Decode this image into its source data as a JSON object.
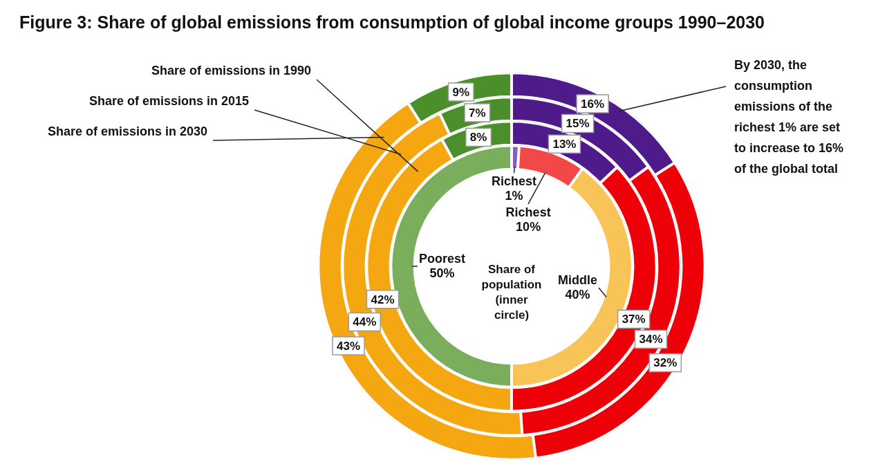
{
  "chart_data": {
    "type": "donut",
    "title": "Figure 3: Share of global emissions from consumption of global income groups 1990–2030",
    "categories": [
      "Richest 1%",
      "Richest 10%",
      "Middle 40%",
      "Poorest 50%"
    ],
    "series": [
      {
        "name": "Share of population (inner circle)",
        "values": [
          1,
          9,
          40,
          50
        ],
        "colors": [
          "#8a5cc2",
          "#f24848",
          "#f8c458",
          "#7aae5c"
        ]
      },
      {
        "name": "Share of emissions in 1990",
        "values": [
          13,
          37,
          42,
          8
        ],
        "colors": [
          "#4f1a8a",
          "#ee0008",
          "#f5a712",
          "#4b8f2b"
        ],
        "value_labels": [
          "13%",
          "37%",
          "42%",
          "8%"
        ]
      },
      {
        "name": "Share of emissions in 2015",
        "values": [
          15,
          34,
          44,
          7
        ],
        "colors": [
          "#4f1a8a",
          "#ee0008",
          "#f5a712",
          "#4b8f2b"
        ],
        "value_labels": [
          "15%",
          "34%",
          "44%",
          "7%"
        ]
      },
      {
        "name": "Share of emissions in 2030",
        "values": [
          16,
          32,
          43,
          9
        ],
        "colors": [
          "#4f1a8a",
          "#ee0008",
          "#f5a712",
          "#4b8f2b"
        ],
        "value_labels": [
          "16%",
          "32%",
          "43%",
          "9%"
        ]
      }
    ],
    "annotations": [
      "By 2030, the consumption emissions of the richest 1% are set to increase to 16% of the global total"
    ],
    "legend": false
  }
}
